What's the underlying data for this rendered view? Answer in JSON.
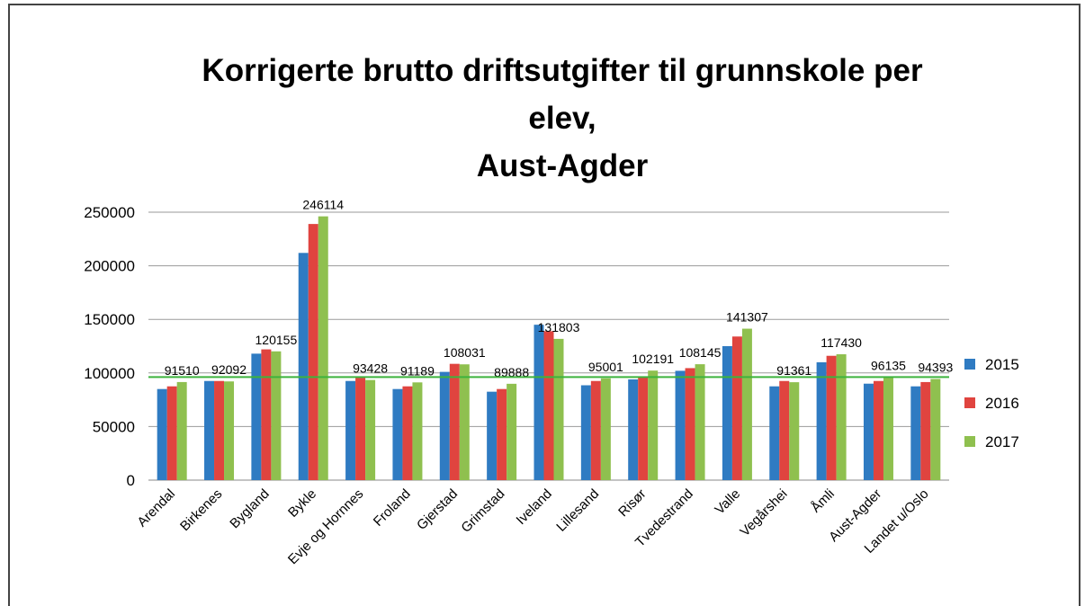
{
  "chart_data": {
    "type": "bar",
    "title": "Korrigerte brutto driftsutgifter til grunnskole per\nelev,\nAust-Agder",
    "categories": [
      "Arendal",
      "Birkenes",
      "Bygland",
      "Bykle",
      "Evje og Hornnes",
      "Froland",
      "Gjerstad",
      "Grimstad",
      "Iveland",
      "Lillesand",
      "Risør",
      "Tvedestrand",
      "Valle",
      "Vegårshei",
      "Åmli",
      "Aust-Agder",
      "Landet u/Oslo"
    ],
    "series": [
      {
        "name": "2015",
        "color": "#2f7bc2",
        "values": [
          85000,
          92500,
          118000,
          212000,
          92500,
          85000,
          101000,
          82500,
          145000,
          88500,
          94000,
          102000,
          125000,
          87500,
          110000,
          90000,
          87500
        ]
      },
      {
        "name": "2016",
        "color": "#e0443f",
        "values": [
          87500,
          92500,
          122000,
          239000,
          95500,
          87500,
          108500,
          85000,
          139000,
          92500,
          96000,
          104500,
          134000,
          92500,
          116000,
          92500,
          91500
        ]
      },
      {
        "name": "2017",
        "color": "#8fc04f",
        "values": [
          91510,
          92092,
          120155,
          246114,
          93428,
          91189,
          108031,
          89888,
          131803,
          95001,
          102191,
          108145,
          141307,
          91361,
          117430,
          96135,
          94393
        ]
      }
    ],
    "reference_line": 96135,
    "ylim": [
      0,
      250000
    ],
    "yticks": [
      0,
      50000,
      100000,
      150000,
      200000,
      250000
    ],
    "grid": true,
    "legend": "right"
  }
}
